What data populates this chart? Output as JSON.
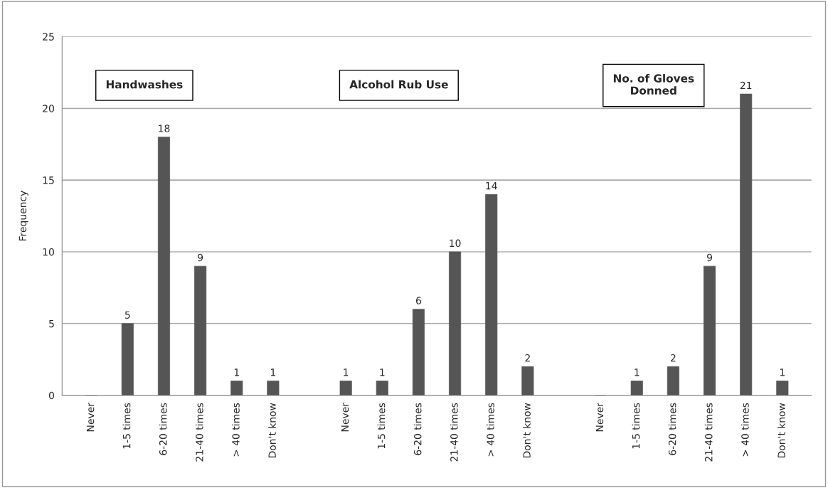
{
  "chart_data": {
    "type": "bar",
    "categories": [
      "Never",
      "1-5 times",
      "6-20 times",
      "21-40 times",
      "> 40 times",
      "Don't know",
      null,
      "Never",
      "1-5 times",
      "6-20 times",
      "21-40 times",
      "> 40 times",
      "Don't know",
      null,
      "Never",
      "1-5 times",
      "6-20 times",
      "21-40 times",
      "> 40 times",
      "Don't know"
    ],
    "values": [
      0,
      5,
      18,
      9,
      1,
      1,
      null,
      1,
      1,
      6,
      10,
      14,
      2,
      null,
      0,
      1,
      2,
      9,
      21,
      1
    ],
    "value_labels": [
      null,
      "5",
      "18",
      "9",
      "1",
      "1",
      null,
      "1",
      "1",
      "6",
      "10",
      "14",
      "2",
      null,
      null,
      "1",
      "2",
      "9",
      "21",
      "1"
    ],
    "color": "#555555",
    "ylabel": "Frequency",
    "ylim": [
      0,
      25
    ],
    "yticks": [
      0,
      5,
      10,
      15,
      20,
      25
    ],
    "grid": "y",
    "annotations": [
      "Handwashes",
      "Alcohol Rub Use",
      "No. of Gloves\nDonned"
    ]
  }
}
